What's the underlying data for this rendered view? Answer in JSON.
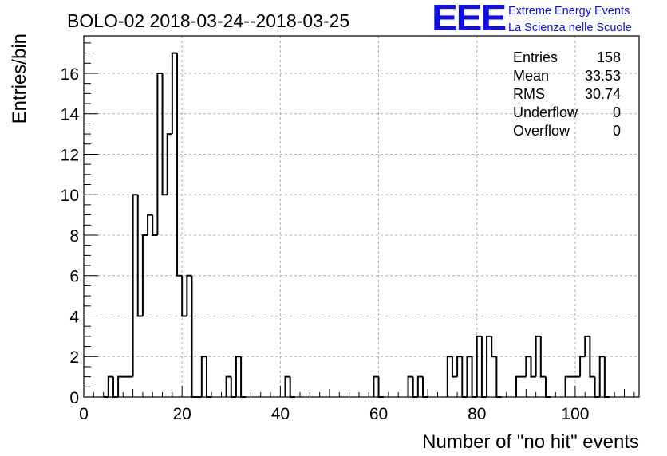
{
  "chart_data": {
    "type": "histogram",
    "title": "BOLO-02 2018-03-24--2018-03-25",
    "xlabel": "Number of \"no hit\" events",
    "ylabel": "Entries/bin",
    "xlim": [
      0,
      113
    ],
    "ylim": [
      0,
      17.85
    ],
    "bin_width": 1,
    "x_ticks": [
      0,
      20,
      40,
      60,
      80,
      100
    ],
    "y_ticks": [
      0,
      2,
      4,
      6,
      8,
      10,
      12,
      14,
      16
    ],
    "grid": true,
    "bins": [
      {
        "x": 4,
        "y": 0
      },
      {
        "x": 5,
        "y": 1
      },
      {
        "x": 6,
        "y": 0
      },
      {
        "x": 7,
        "y": 1
      },
      {
        "x": 8,
        "y": 1
      },
      {
        "x": 9,
        "y": 1
      },
      {
        "x": 10,
        "y": 10
      },
      {
        "x": 11,
        "y": 4
      },
      {
        "x": 12,
        "y": 8
      },
      {
        "x": 13,
        "y": 9
      },
      {
        "x": 14,
        "y": 8
      },
      {
        "x": 15,
        "y": 16
      },
      {
        "x": 16,
        "y": 10
      },
      {
        "x": 17,
        "y": 13
      },
      {
        "x": 18,
        "y": 17
      },
      {
        "x": 19,
        "y": 6
      },
      {
        "x": 20,
        "y": 4
      },
      {
        "x": 21,
        "y": 6
      },
      {
        "x": 22,
        "y": 0
      },
      {
        "x": 23,
        "y": 0
      },
      {
        "x": 24,
        "y": 2
      },
      {
        "x": 25,
        "y": 0
      },
      {
        "x": 29,
        "y": 1
      },
      {
        "x": 30,
        "y": 0
      },
      {
        "x": 31,
        "y": 2
      },
      {
        "x": 32,
        "y": 0
      },
      {
        "x": 41,
        "y": 1
      },
      {
        "x": 42,
        "y": 0
      },
      {
        "x": 59,
        "y": 1
      },
      {
        "x": 60,
        "y": 0
      },
      {
        "x": 66,
        "y": 1
      },
      {
        "x": 67,
        "y": 0
      },
      {
        "x": 68,
        "y": 1
      },
      {
        "x": 69,
        "y": 0
      },
      {
        "x": 74,
        "y": 2
      },
      {
        "x": 75,
        "y": 1
      },
      {
        "x": 76,
        "y": 2
      },
      {
        "x": 77,
        "y": 0
      },
      {
        "x": 78,
        "y": 2
      },
      {
        "x": 79,
        "y": 0
      },
      {
        "x": 80,
        "y": 3
      },
      {
        "x": 81,
        "y": 0
      },
      {
        "x": 82,
        "y": 3
      },
      {
        "x": 83,
        "y": 2
      },
      {
        "x": 84,
        "y": 0
      },
      {
        "x": 88,
        "y": 1
      },
      {
        "x": 89,
        "y": 1
      },
      {
        "x": 90,
        "y": 2
      },
      {
        "x": 91,
        "y": 1
      },
      {
        "x": 92,
        "y": 3
      },
      {
        "x": 93,
        "y": 1
      },
      {
        "x": 94,
        "y": 0
      },
      {
        "x": 98,
        "y": 1
      },
      {
        "x": 99,
        "y": 1
      },
      {
        "x": 100,
        "y": 1
      },
      {
        "x": 101,
        "y": 2
      },
      {
        "x": 102,
        "y": 3
      },
      {
        "x": 103,
        "y": 1
      },
      {
        "x": 104,
        "y": 0
      },
      {
        "x": 105,
        "y": 2
      },
      {
        "x": 106,
        "y": 0
      }
    ],
    "stats": [
      {
        "label": "Entries",
        "value": "158"
      },
      {
        "label": "Mean",
        "value": "33.53"
      },
      {
        "label": "RMS",
        "value": "30.74"
      },
      {
        "label": "Underflow",
        "value": "0"
      },
      {
        "label": "Overflow",
        "value": "0"
      }
    ]
  },
  "logo": {
    "mark": "EEE",
    "line1": "Extreme Energy Events",
    "line2": "La Scienza nelle Scuole",
    "color": "#1010e0"
  }
}
